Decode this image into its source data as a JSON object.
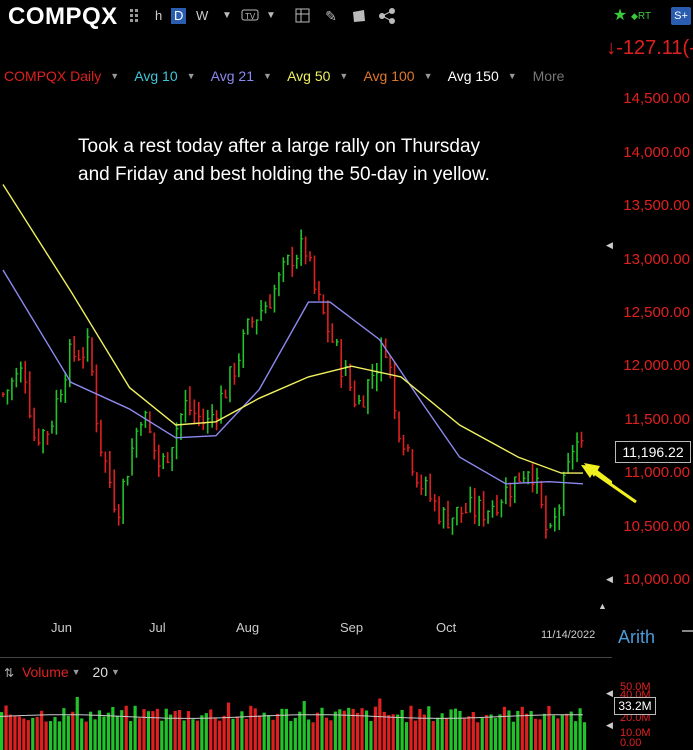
{
  "toolbar": {
    "symbol": "COMPQX",
    "periods": [
      "h",
      "D",
      "W"
    ],
    "active_period": "D",
    "icons": [
      "grid-icon",
      "chart-type-icon",
      "tools-icon",
      "pencil-icon",
      "notes-icon",
      "share-icon",
      "star-icon",
      "rt-icon",
      "s-plus-icon"
    ],
    "rt_label": "RT",
    "s_label": "S+"
  },
  "quote": {
    "change": "↓-127.11(-1"
  },
  "legend": {
    "series_name": "COMPQX Daily",
    "avg10": "Avg 10",
    "avg21": "Avg 21",
    "avg50": "Avg 50",
    "avg100": "Avg 100",
    "avg150": "Avg 150",
    "more": "More"
  },
  "annotation": {
    "line1": "Took a rest today after a large rally on Thursday",
    "line2": "and Friday and best holding the 50-day in yellow."
  },
  "price_axis": {
    "ticks": [
      "14,500.00",
      "14,000.00",
      "13,500.00",
      "13,000.00",
      "12,500.00",
      "12,000.00",
      "11,500.00",
      "11,000.00",
      "10,500.00",
      "10,000.00"
    ],
    "last_price": "11,196.22"
  },
  "time_axis": {
    "months": [
      "Jun",
      "Jul",
      "Aug",
      "Sep",
      "Oct"
    ],
    "date_stamp": "11/14/2022",
    "scale_label": "Arith"
  },
  "volume": {
    "label": "Volume",
    "period": "20",
    "ticks": [
      "50.0M",
      "40.0M",
      "20.0M",
      "10.0M",
      "0.00"
    ],
    "last": "33.2M"
  },
  "colors": {
    "up": "#22c22a",
    "down": "#e02020",
    "avg10": "#3fc6d8",
    "avg21": "#8d89f0",
    "avg50": "#f0f060",
    "avg100": "#e0782a",
    "avg150": "#ffffff",
    "arrow": "#f0f020"
  },
  "chart_data": {
    "type": "line",
    "title": "COMPQX Daily",
    "ylim": [
      9900,
      14800
    ],
    "series": [
      {
        "name": "COMPQX Daily",
        "points": [
          [
            "2022-05-10",
            11740
          ],
          [
            "2022-05-17",
            11980
          ],
          [
            "2022-05-20",
            11350
          ],
          [
            "2022-05-25",
            11410
          ],
          [
            "2022-05-31",
            12080
          ],
          [
            "2022-06-07",
            12170
          ],
          [
            "2022-06-10",
            11340
          ],
          [
            "2022-06-16",
            10650
          ],
          [
            "2022-06-24",
            11600
          ],
          [
            "2022-06-30",
            11030
          ],
          [
            "2022-07-08",
            11640
          ],
          [
            "2022-07-15",
            11450
          ],
          [
            "2022-07-22",
            11830
          ],
          [
            "2022-07-29",
            12390
          ],
          [
            "2022-08-05",
            12660
          ],
          [
            "2022-08-12",
            13050
          ],
          [
            "2022-08-16",
            13100
          ],
          [
            "2022-08-19",
            12700
          ],
          [
            "2022-08-26",
            12140
          ],
          [
            "2022-09-02",
            11630
          ],
          [
            "2022-09-12",
            12270
          ],
          [
            "2022-09-13",
            11630
          ],
          [
            "2022-09-23",
            10870
          ],
          [
            "2022-09-30",
            10580
          ],
          [
            "2022-10-07",
            10650
          ],
          [
            "2022-10-13",
            10650
          ],
          [
            "2022-10-21",
            10860
          ],
          [
            "2022-10-28",
            11100
          ],
          [
            "2022-11-03",
            10340
          ],
          [
            "2022-11-10",
            11110
          ],
          [
            "2022-11-11",
            11320
          ],
          [
            "2022-11-14",
            11196
          ]
        ]
      },
      {
        "name": "Avg 21",
        "points": [
          [
            "2022-05-10",
            12900
          ],
          [
            "2022-06-01",
            11850
          ],
          [
            "2022-06-20",
            11600
          ],
          [
            "2022-07-05",
            11330
          ],
          [
            "2022-07-18",
            11350
          ],
          [
            "2022-08-01",
            11780
          ],
          [
            "2022-08-17",
            12600
          ],
          [
            "2022-08-24",
            12600
          ],
          [
            "2022-09-09",
            12250
          ],
          [
            "2022-09-23",
            11650
          ],
          [
            "2022-10-05",
            11150
          ],
          [
            "2022-10-20",
            10900
          ],
          [
            "2022-11-03",
            10920
          ],
          [
            "2022-11-14",
            10900
          ]
        ]
      },
      {
        "name": "Avg 50",
        "points": [
          [
            "2022-05-10",
            13700
          ],
          [
            "2022-06-01",
            12700
          ],
          [
            "2022-06-20",
            11800
          ],
          [
            "2022-07-05",
            11450
          ],
          [
            "2022-07-18",
            11480
          ],
          [
            "2022-08-01",
            11700
          ],
          [
            "2022-08-17",
            11900
          ],
          [
            "2022-08-31",
            12000
          ],
          [
            "2022-09-16",
            11900
          ],
          [
            "2022-10-05",
            11450
          ],
          [
            "2022-10-24",
            11150
          ],
          [
            "2022-11-07",
            11000
          ],
          [
            "2022-11-14",
            11000
          ]
        ]
      }
    ],
    "volume": {
      "unit": "M",
      "ylim": [
        0,
        50
      ],
      "last": 33.2
    }
  }
}
